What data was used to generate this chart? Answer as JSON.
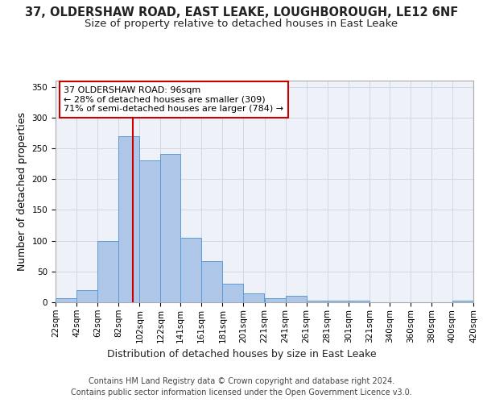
{
  "title_line1": "37, OLDERSHAW ROAD, EAST LEAKE, LOUGHBOROUGH, LE12 6NF",
  "title_line2": "Size of property relative to detached houses in East Leake",
  "xlabel": "Distribution of detached houses by size in East Leake",
  "ylabel": "Number of detached properties",
  "footer_line1": "Contains HM Land Registry data © Crown copyright and database right 2024.",
  "footer_line2": "Contains public sector information licensed under the Open Government Licence v3.0.",
  "bin_labels": [
    "22sqm",
    "42sqm",
    "62sqm",
    "82sqm",
    "102sqm",
    "122sqm",
    "141sqm",
    "161sqm",
    "181sqm",
    "201sqm",
    "221sqm",
    "241sqm",
    "261sqm",
    "281sqm",
    "301sqm",
    "321sqm",
    "340sqm",
    "360sqm",
    "380sqm",
    "400sqm",
    "420sqm"
  ],
  "bar_values": [
    7,
    19,
    99,
    270,
    231,
    241,
    105,
    67,
    30,
    15,
    7,
    10,
    2,
    3,
    2,
    0,
    0,
    0,
    0,
    2
  ],
  "bar_color": "#aec6e8",
  "bar_edge_color": "#5b9bd5",
  "grid_color": "#d0d8e8",
  "background_color": "#eef2f8",
  "vline_x": 96,
  "vline_color": "#cc0000",
  "annotation_box_text": "37 OLDERSHAW ROAD: 96sqm\n← 28% of detached houses are smaller (309)\n71% of semi-detached houses are larger (784) →",
  "ylim": [
    0,
    360
  ],
  "yticks": [
    0,
    50,
    100,
    150,
    200,
    250,
    300,
    350
  ],
  "bin_edges": [
    22,
    42,
    62,
    82,
    102,
    122,
    141,
    161,
    181,
    201,
    221,
    241,
    261,
    281,
    301,
    321,
    340,
    360,
    380,
    400,
    420
  ],
  "title_fontsize": 10.5,
  "subtitle_fontsize": 9.5,
  "axis_label_fontsize": 9,
  "tick_fontsize": 7.5,
  "footer_fontsize": 7,
  "ann_fontsize": 8
}
